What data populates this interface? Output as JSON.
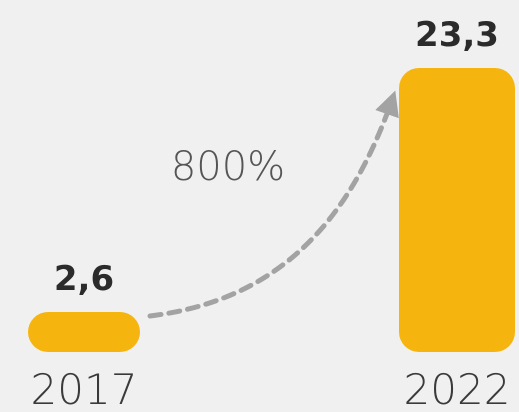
{
  "chart_data": {
    "type": "bar",
    "categories": [
      "2017",
      "2022"
    ],
    "values": [
      2.6,
      23.3
    ],
    "value_labels": [
      "2,6",
      "23,3"
    ],
    "annotation": "800%",
    "bar_color": "#f6b50e",
    "arrow_color": "#a3a3a3",
    "title": "",
    "xlabel": "",
    "ylabel": "",
    "ylim": [
      0,
      23.3
    ],
    "grid": false,
    "legend": "none"
  }
}
